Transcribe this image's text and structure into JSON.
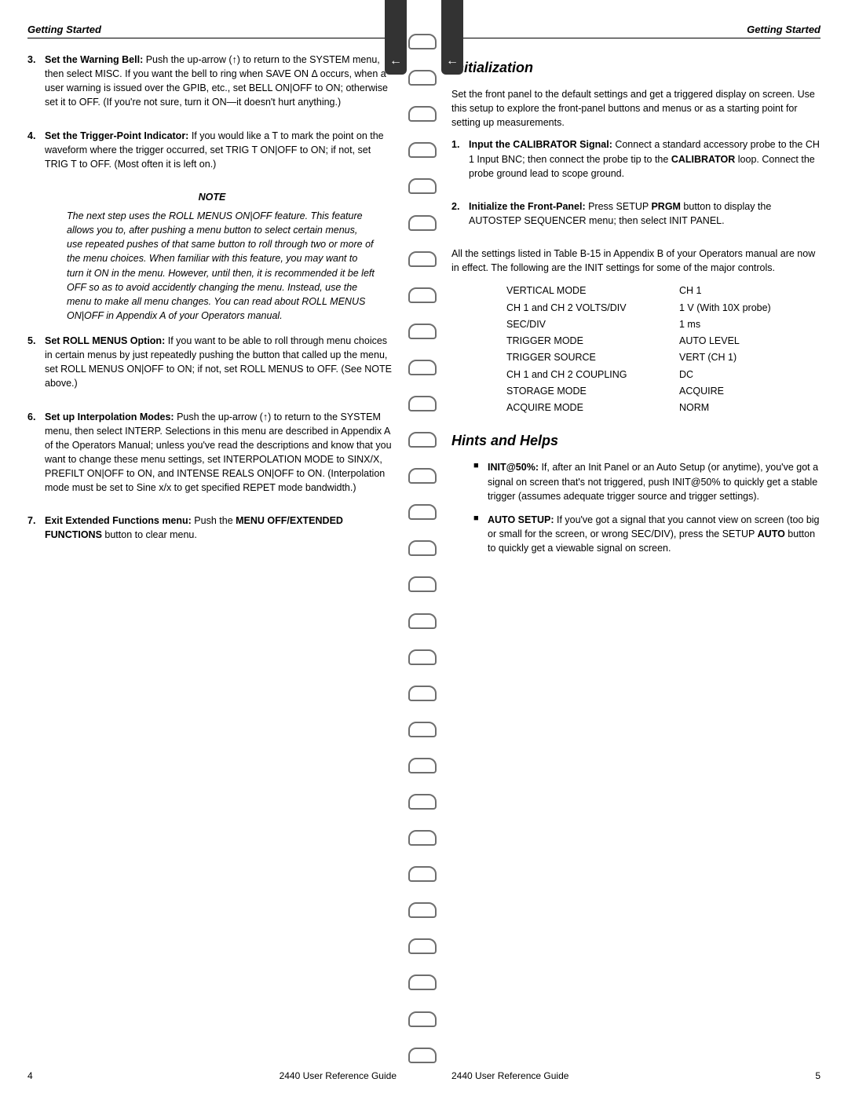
{
  "left": {
    "header": "Getting Started",
    "tab_glyph": "←",
    "steps": [
      {
        "num": "3.",
        "paras": [
          "<b>Set the Warning Bell:</b> Push the up-arrow (↑) to return to the SYSTEM menu, then select MISC. If you want the bell to ring when SAVE ON Δ occurs, when a user warning is issued over the GPIB, etc., set BELL ON|OFF to ON; otherwise set it to OFF. (If you're not sure, turn it ON—it doesn't hurt anything.)"
        ]
      },
      {
        "num": "4.",
        "paras": [
          "<b>Set the Trigger-Point Indicator:</b> If you would like a T to mark the point on the waveform where the trigger occurred, set TRIG T ON|OFF to ON; if not, set TRIG T to OFF. (Most often it is left on.)"
        ],
        "note_head": "NOTE",
        "note_body": "The next step uses the ROLL MENUS ON|OFF feature. This feature allows you to, after pushing a menu button to select certain menus, use repeated pushes of that same button to roll through two or more of the menu choices. When familiar with this feature, you may want to turn it ON in the menu. However, until then, it is recommended it be left OFF so as to avoid accidently changing the menu. Instead, use the menu to make all menu changes. You can read about ROLL MENUS ON|OFF in Appendix A of your Operators manual."
      },
      {
        "num": "5.",
        "paras": [
          "<b>Set ROLL MENUS Option:</b> If you want to be able to roll through menu choices in certain menus by just repeatedly pushing the button that called up the menu, set ROLL MENUS ON|OFF to ON; if not, set ROLL MENUS to OFF. (See NOTE above.)"
        ]
      },
      {
        "num": "6.",
        "paras": [
          "<b>Set up Interpolation Modes:</b> Push the up-arrow (↑) to return to the SYSTEM menu, then select INTERP. Selections in this menu are described in Appendix A of the Operators Manual; unless you've read the descriptions and know that you want to change these menu settings, set INTERPOLATION MODE to SINX/X, PREFILT ON|OFF to ON, and INTENSE REALS ON|OFF to ON. (Interpolation mode must be set to Sine x/x to get specified REPET mode bandwidth.)"
        ]
      },
      {
        "num": "7.",
        "paras": [
          "<b>Exit Extended Functions menu:</b> Push the <b>MENU OFF/EXTENDED FUNCTIONS</b> button to clear menu."
        ]
      }
    ],
    "footer_page": "4",
    "footer_title": "2440 User Reference Guide"
  },
  "right": {
    "header": "Getting Started",
    "tab_glyph": "←",
    "section_init": "Initialization",
    "init_intro": "Set the front panel to the default settings and get a triggered display on screen. Use this setup to explore the front-panel buttons and menus or as a starting point for setting up measurements.",
    "steps": [
      {
        "num": "1.",
        "html": "<b>Input the CALIBRATOR Signal:</b> Connect a standard accessory probe to the CH 1 Input BNC; then connect the probe tip to the <b>CALIBRATOR</b> loop. Connect the probe ground lead to scope ground."
      },
      {
        "num": "2.",
        "html": "<b>Initialize the Front-Panel:</b> Press SETUP <b>PRGM</b> button to display the AUTOSTEP SEQUENCER menu; then select INIT PANEL."
      }
    ],
    "post_steps": "All the settings listed in Table B-15 in Appendix B of your Operators manual are now in effect. The following are the INIT settings for some of the major controls.",
    "table": [
      [
        "VERTICAL MODE",
        "CH 1"
      ],
      [
        "CH 1 and CH 2 VOLTS/DIV",
        "1 V (With 10X probe)"
      ],
      [
        "SEC/DIV",
        "1 ms"
      ],
      [
        "TRIGGER MODE",
        "AUTO LEVEL"
      ],
      [
        "TRIGGER SOURCE",
        "VERT (CH 1)"
      ],
      [
        "CH 1 and CH 2 COUPLING",
        "DC"
      ],
      [
        "STORAGE MODE",
        "ACQUIRE"
      ],
      [
        "ACQUIRE MODE",
        "NORM"
      ]
    ],
    "section_hints": "Hints and Helps",
    "bullets": [
      "<b>INIT@50%:</b> If, after an Init Panel or an Auto Setup (or anytime), you've got a signal on screen that's not triggered, push INIT@50% to quickly get a stable trigger (assumes adequate trigger source and trigger settings).",
      "<b>AUTO SETUP:</b> If you've got a signal that you cannot view on screen (too big or small for the screen, or wrong SEC/DIV), press the SETUP <b>AUTO</b> button to quickly get a viewable signal on screen."
    ],
    "footer_title": "2440 User Reference Guide",
    "footer_page": "5"
  }
}
